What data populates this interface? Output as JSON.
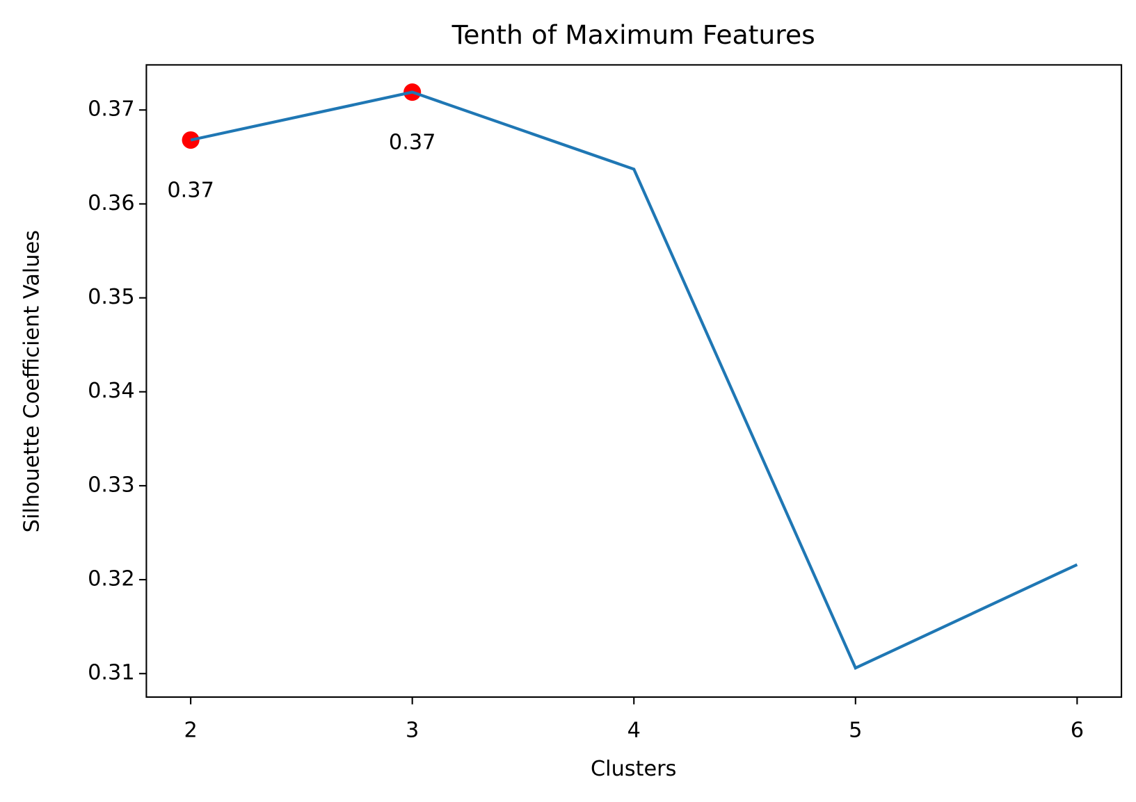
{
  "chart_data": {
    "type": "line",
    "title": "Tenth of Maximum Features",
    "x_label": "Clusters",
    "y_label": "Silhouette Coefficient Values",
    "x": [
      2,
      3,
      4,
      5,
      6
    ],
    "series": [
      {
        "color": "#1f77b4",
        "values": [
          0.3668,
          0.3719,
          0.3637,
          0.3106,
          0.3216
        ]
      }
    ],
    "highlight_points": {
      "color": "#ff0000",
      "x": [
        2,
        3
      ],
      "values": [
        0.3668,
        0.3719
      ],
      "value_labels": [
        "0.37",
        "0.37"
      ]
    },
    "xlim": [
      1.8,
      6.2
    ],
    "xticks": [
      2,
      3,
      4,
      5,
      6
    ],
    "ylim": [
      0.3075,
      0.3748
    ],
    "yticks": [
      0.31,
      0.32,
      0.33,
      0.34,
      0.35,
      0.36,
      0.37
    ],
    "grid": false
  }
}
